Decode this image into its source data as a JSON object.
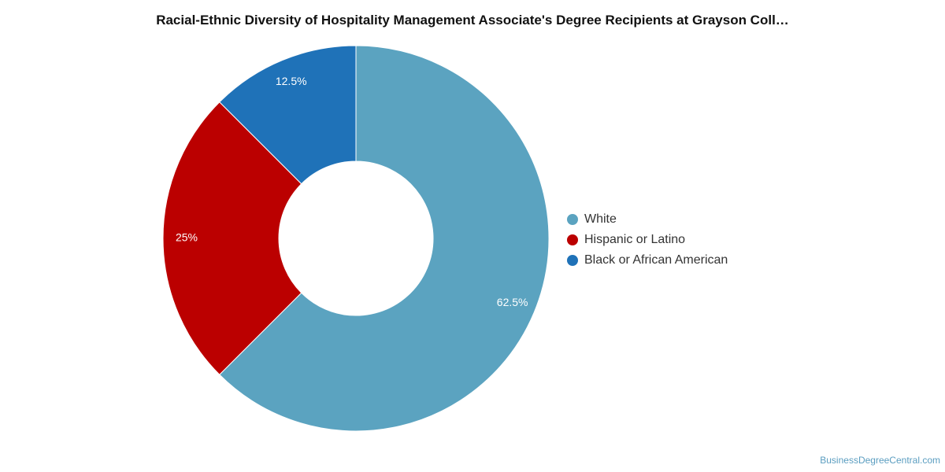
{
  "chart_data": {
    "type": "pie",
    "title": "Racial-Ethnic Diversity of Hospitality Management Associate's Degree Recipients at Grayson Coll…",
    "categories": [
      "White",
      "Hispanic or Latino",
      "Black or African American"
    ],
    "values": [
      62.5,
      25,
      12.5
    ],
    "value_labels": [
      "62.5%",
      "25%",
      "12.5%"
    ],
    "colors": [
      "#5ba3c0",
      "#bb0000",
      "#1f72b8"
    ],
    "donut": true,
    "legend_position": "right"
  },
  "credit": "BusinessDegreeCentral.com"
}
